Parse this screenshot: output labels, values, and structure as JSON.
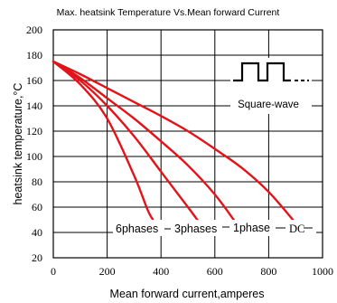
{
  "chart_data": {
    "type": "line",
    "title": "Max. heatsink Temperature Vs.Mean forward Current",
    "xlabel": "Mean forward current,amperes",
    "ylabel": "heatsink temperature,°C",
    "xlim": [
      0,
      1000
    ],
    "ylim": [
      20,
      200
    ],
    "x_ticks": [
      "0",
      "200",
      "400",
      "600",
      "800",
      "1000"
    ],
    "y_ticks": [
      "20",
      "40",
      "60",
      "80",
      "100",
      "120",
      "140",
      "160",
      "180",
      "200"
    ],
    "grid": true,
    "legend": "none",
    "inset_label": "Square-wave",
    "series": [
      {
        "name": "6phases",
        "x": [
          0,
          100,
          200,
          300,
          350,
          370
        ],
        "y": [
          175,
          157,
          130,
          85,
          58,
          50
        ]
      },
      {
        "name": "3phases",
        "x": [
          0,
          100,
          200,
          300,
          400,
          500,
          535
        ],
        "y": [
          175,
          160,
          140,
          116,
          88,
          60,
          50
        ]
      },
      {
        "name": "1phase",
        "x": [
          0,
          100,
          200,
          300,
          400,
          500,
          600,
          670
        ],
        "y": [
          175,
          162,
          146,
          130,
          112,
          93,
          70,
          50
        ]
      },
      {
        "name": "DC",
        "x": [
          0,
          100,
          200,
          300,
          400,
          500,
          600,
          700,
          800,
          890
        ],
        "y": [
          175,
          165,
          154,
          143,
          132,
          120,
          106,
          91,
          72,
          50
        ]
      }
    ]
  }
}
